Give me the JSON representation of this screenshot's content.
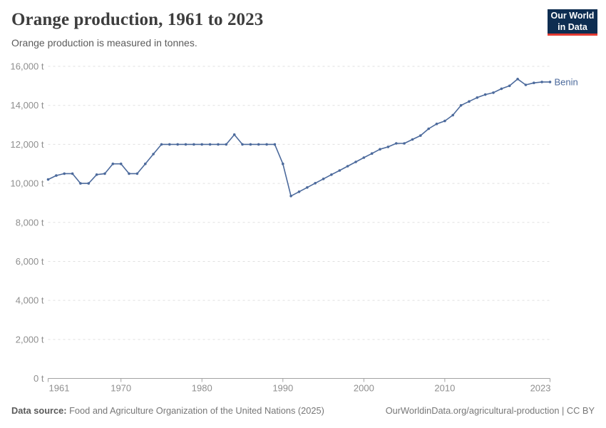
{
  "header": {
    "title": "Orange production, 1961 to 2023",
    "subtitle": "Orange production is measured in tonnes.",
    "logo": {
      "line1": "Our World",
      "line2": "in Data"
    }
  },
  "chart_data": {
    "type": "line",
    "title": "Orange production, 1961 to 2023",
    "unit": "t",
    "xlabel": "",
    "ylabel": "",
    "ylim": [
      0,
      16000
    ],
    "yticks": [
      0,
      2000,
      4000,
      6000,
      8000,
      10000,
      12000,
      14000,
      16000
    ],
    "ytick_suffix": " t",
    "xticks": [
      1961,
      1970,
      1980,
      1990,
      2000,
      2010,
      2023
    ],
    "grid": "horizontal-dashed",
    "legend_position": "end-of-line-label",
    "x": [
      1961,
      1962,
      1963,
      1964,
      1965,
      1966,
      1967,
      1968,
      1969,
      1970,
      1971,
      1972,
      1973,
      1974,
      1975,
      1976,
      1977,
      1978,
      1979,
      1980,
      1981,
      1982,
      1983,
      1984,
      1985,
      1986,
      1987,
      1988,
      1989,
      1990,
      1991,
      1992,
      1993,
      1994,
      1995,
      1996,
      1997,
      1998,
      1999,
      2000,
      2001,
      2002,
      2003,
      2004,
      2005,
      2006,
      2007,
      2008,
      2009,
      2010,
      2011,
      2012,
      2013,
      2014,
      2015,
      2016,
      2017,
      2018,
      2019,
      2020,
      2021,
      2022,
      2023
    ],
    "series": [
      {
        "name": "Benin",
        "color": "#4C6A9C",
        "values": [
          10200,
          10400,
          10500,
          10500,
          10000,
          10000,
          10450,
          10500,
          11000,
          11000,
          10500,
          10500,
          11000,
          11500,
          12000,
          12000,
          12000,
          12000,
          12000,
          12000,
          12000,
          12000,
          12000,
          12500,
          12000,
          12000,
          12000,
          12000,
          12000,
          11000,
          9350,
          9570,
          9790,
          10010,
          10230,
          10450,
          10660,
          10880,
          11100,
          11320,
          11530,
          11750,
          11870,
          12050,
          12050,
          12250,
          12450,
          12800,
          13050,
          13200,
          13500,
          14000,
          14200,
          14400,
          14550,
          14650,
          14850,
          15000,
          15350,
          15050,
          15150,
          15200,
          15200
        ]
      }
    ]
  },
  "footer": {
    "datasource_label": "Data source:",
    "datasource_text": "Food and Agriculture Organization of the United Nations (2025)",
    "link": "OurWorldinData.org/agricultural-production | CC BY"
  },
  "colors": {
    "series_blue": "#4C6A9C",
    "grid": "#e0e0e0",
    "axis": "#a3a3a3",
    "tick_text": "#8f8f8f",
    "logo_bg": "#0e2d51",
    "logo_accent": "#e23a31"
  }
}
